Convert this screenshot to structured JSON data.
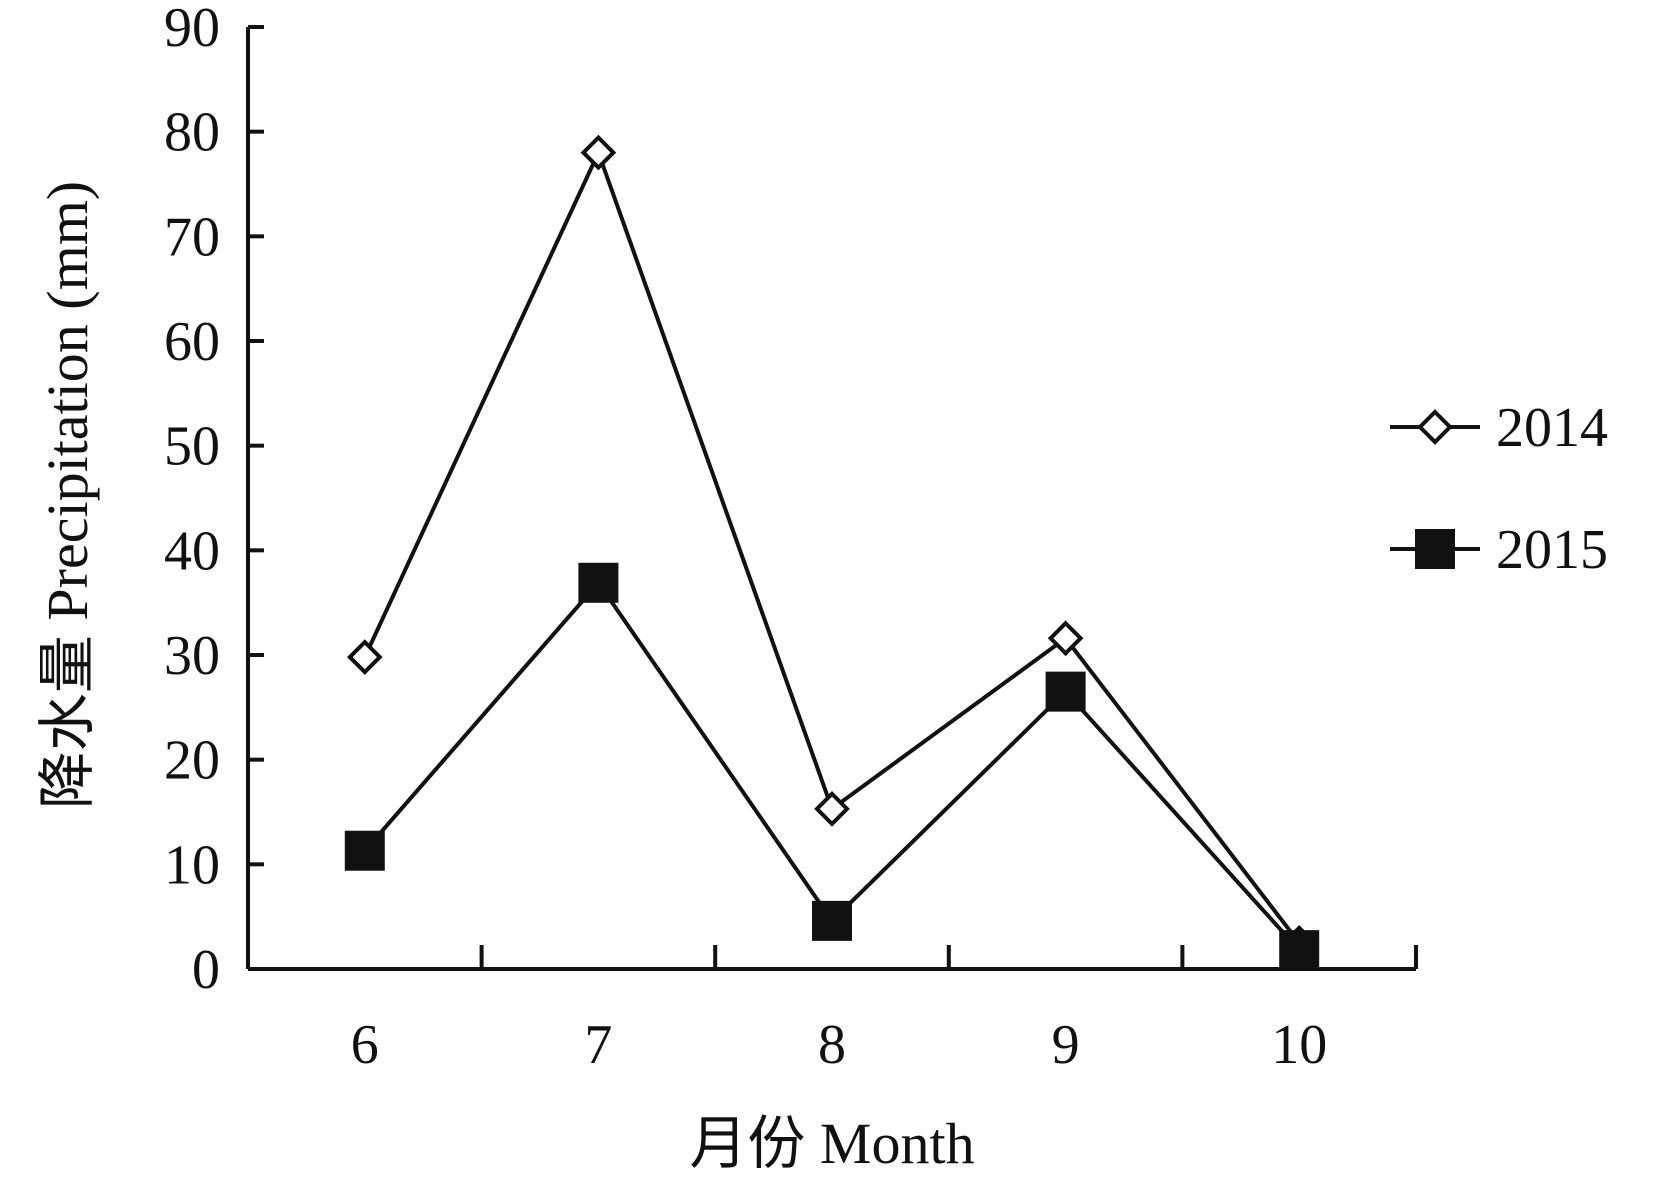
{
  "chart_data": {
    "type": "line",
    "title": "",
    "xlabel": "月份 Month",
    "ylabel": "降水量 Precipitation (mm)",
    "categories": [
      "6",
      "7",
      "8",
      "9",
      "10"
    ],
    "ylim": [
      0,
      90
    ],
    "yticks": [
      "0",
      "10",
      "20",
      "30",
      "40",
      "50",
      "60",
      "70",
      "80",
      "90"
    ],
    "grid": false,
    "legend_position": "right",
    "series": [
      {
        "name": "2014",
        "marker": "diamond-open",
        "color": "#111111",
        "values": [
          29.8,
          78.0,
          15.3,
          31.6,
          2.5
        ]
      },
      {
        "name": "2015",
        "marker": "square-filled",
        "color": "#111111",
        "values": [
          11.3,
          36.9,
          4.6,
          26.5,
          1.8
        ]
      }
    ]
  }
}
